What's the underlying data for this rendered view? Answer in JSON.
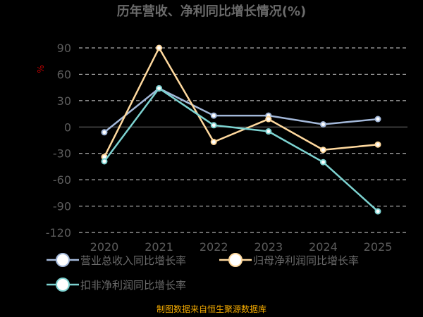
{
  "chart_data": {
    "type": "line",
    "title": "历年营收、净利同比增长情况(%)",
    "ylabel": "%",
    "ylim": [
      -120,
      90
    ],
    "yticks": [
      90,
      60,
      30,
      0,
      -30,
      -60,
      -90,
      -120
    ],
    "grid": true,
    "legend_position": "bottom",
    "categories": [
      "2020",
      "2021",
      "2022",
      "2023",
      "2024",
      "2025"
    ],
    "series": [
      {
        "name": "营业总收入同比增长率",
        "color": "#a3b8d9",
        "values": [
          -6,
          44,
          13,
          13,
          3,
          9
        ]
      },
      {
        "name": "归母净利润同比增长率",
        "color": "#ffd99e",
        "values": [
          -34,
          90,
          -17,
          9,
          -26,
          -20
        ]
      },
      {
        "name": "扣非净利润同比增长率",
        "color": "#7dd3d1",
        "values": [
          -39,
          44,
          2,
          -5,
          -40,
          -96
        ]
      }
    ]
  },
  "source": "制图数据来自恒生聚源数据库"
}
